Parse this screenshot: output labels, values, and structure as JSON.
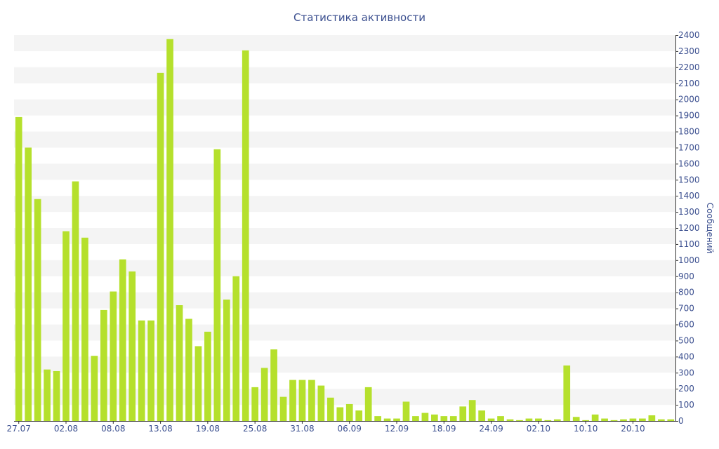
{
  "colors": {
    "bar": "#b5e02c",
    "text": "#3b4f8f",
    "band": "#f4f4f4",
    "axis": "#333333"
  },
  "chart_data": {
    "type": "bar",
    "title": "Статистика активности",
    "ylabel": "Сообщений",
    "ylim": [
      0,
      2400
    ],
    "yticks": [
      0,
      100,
      200,
      300,
      400,
      500,
      600,
      700,
      800,
      900,
      1000,
      1100,
      1200,
      1300,
      1400,
      1500,
      1600,
      1700,
      1800,
      1900,
      2000,
      2100,
      2200,
      2300,
      2400
    ],
    "grid": "alternating horizontal bands",
    "y_axis_position": "right",
    "x_tick_labels": [
      {
        "index": 0,
        "label": "27.07"
      },
      {
        "index": 5,
        "label": "02.08"
      },
      {
        "index": 10,
        "label": "08.08"
      },
      {
        "index": 15,
        "label": "13.08"
      },
      {
        "index": 20,
        "label": "19.08"
      },
      {
        "index": 25,
        "label": "25.08"
      },
      {
        "index": 30,
        "label": "31.08"
      },
      {
        "index": 35,
        "label": "06.09"
      },
      {
        "index": 40,
        "label": "12.09"
      },
      {
        "index": 45,
        "label": "18.09"
      },
      {
        "index": 50,
        "label": "24.09"
      },
      {
        "index": 55,
        "label": "02.10"
      },
      {
        "index": 60,
        "label": "10.10"
      },
      {
        "index": 65,
        "label": "20.10"
      }
    ],
    "values": [
      1890,
      1700,
      1380,
      320,
      310,
      1180,
      1490,
      1140,
      405,
      690,
      805,
      1005,
      930,
      625,
      625,
      2165,
      2375,
      720,
      635,
      465,
      555,
      1690,
      755,
      900,
      2305,
      210,
      330,
      445,
      150,
      255,
      255,
      255,
      220,
      145,
      85,
      105,
      65,
      210,
      30,
      15,
      15,
      120,
      30,
      50,
      40,
      30,
      30,
      90,
      130,
      65,
      15,
      30,
      10,
      5,
      15,
      15,
      5,
      10,
      345,
      25,
      5,
      40,
      15,
      5,
      10,
      15,
      15,
      35,
      10,
      10
    ]
  }
}
